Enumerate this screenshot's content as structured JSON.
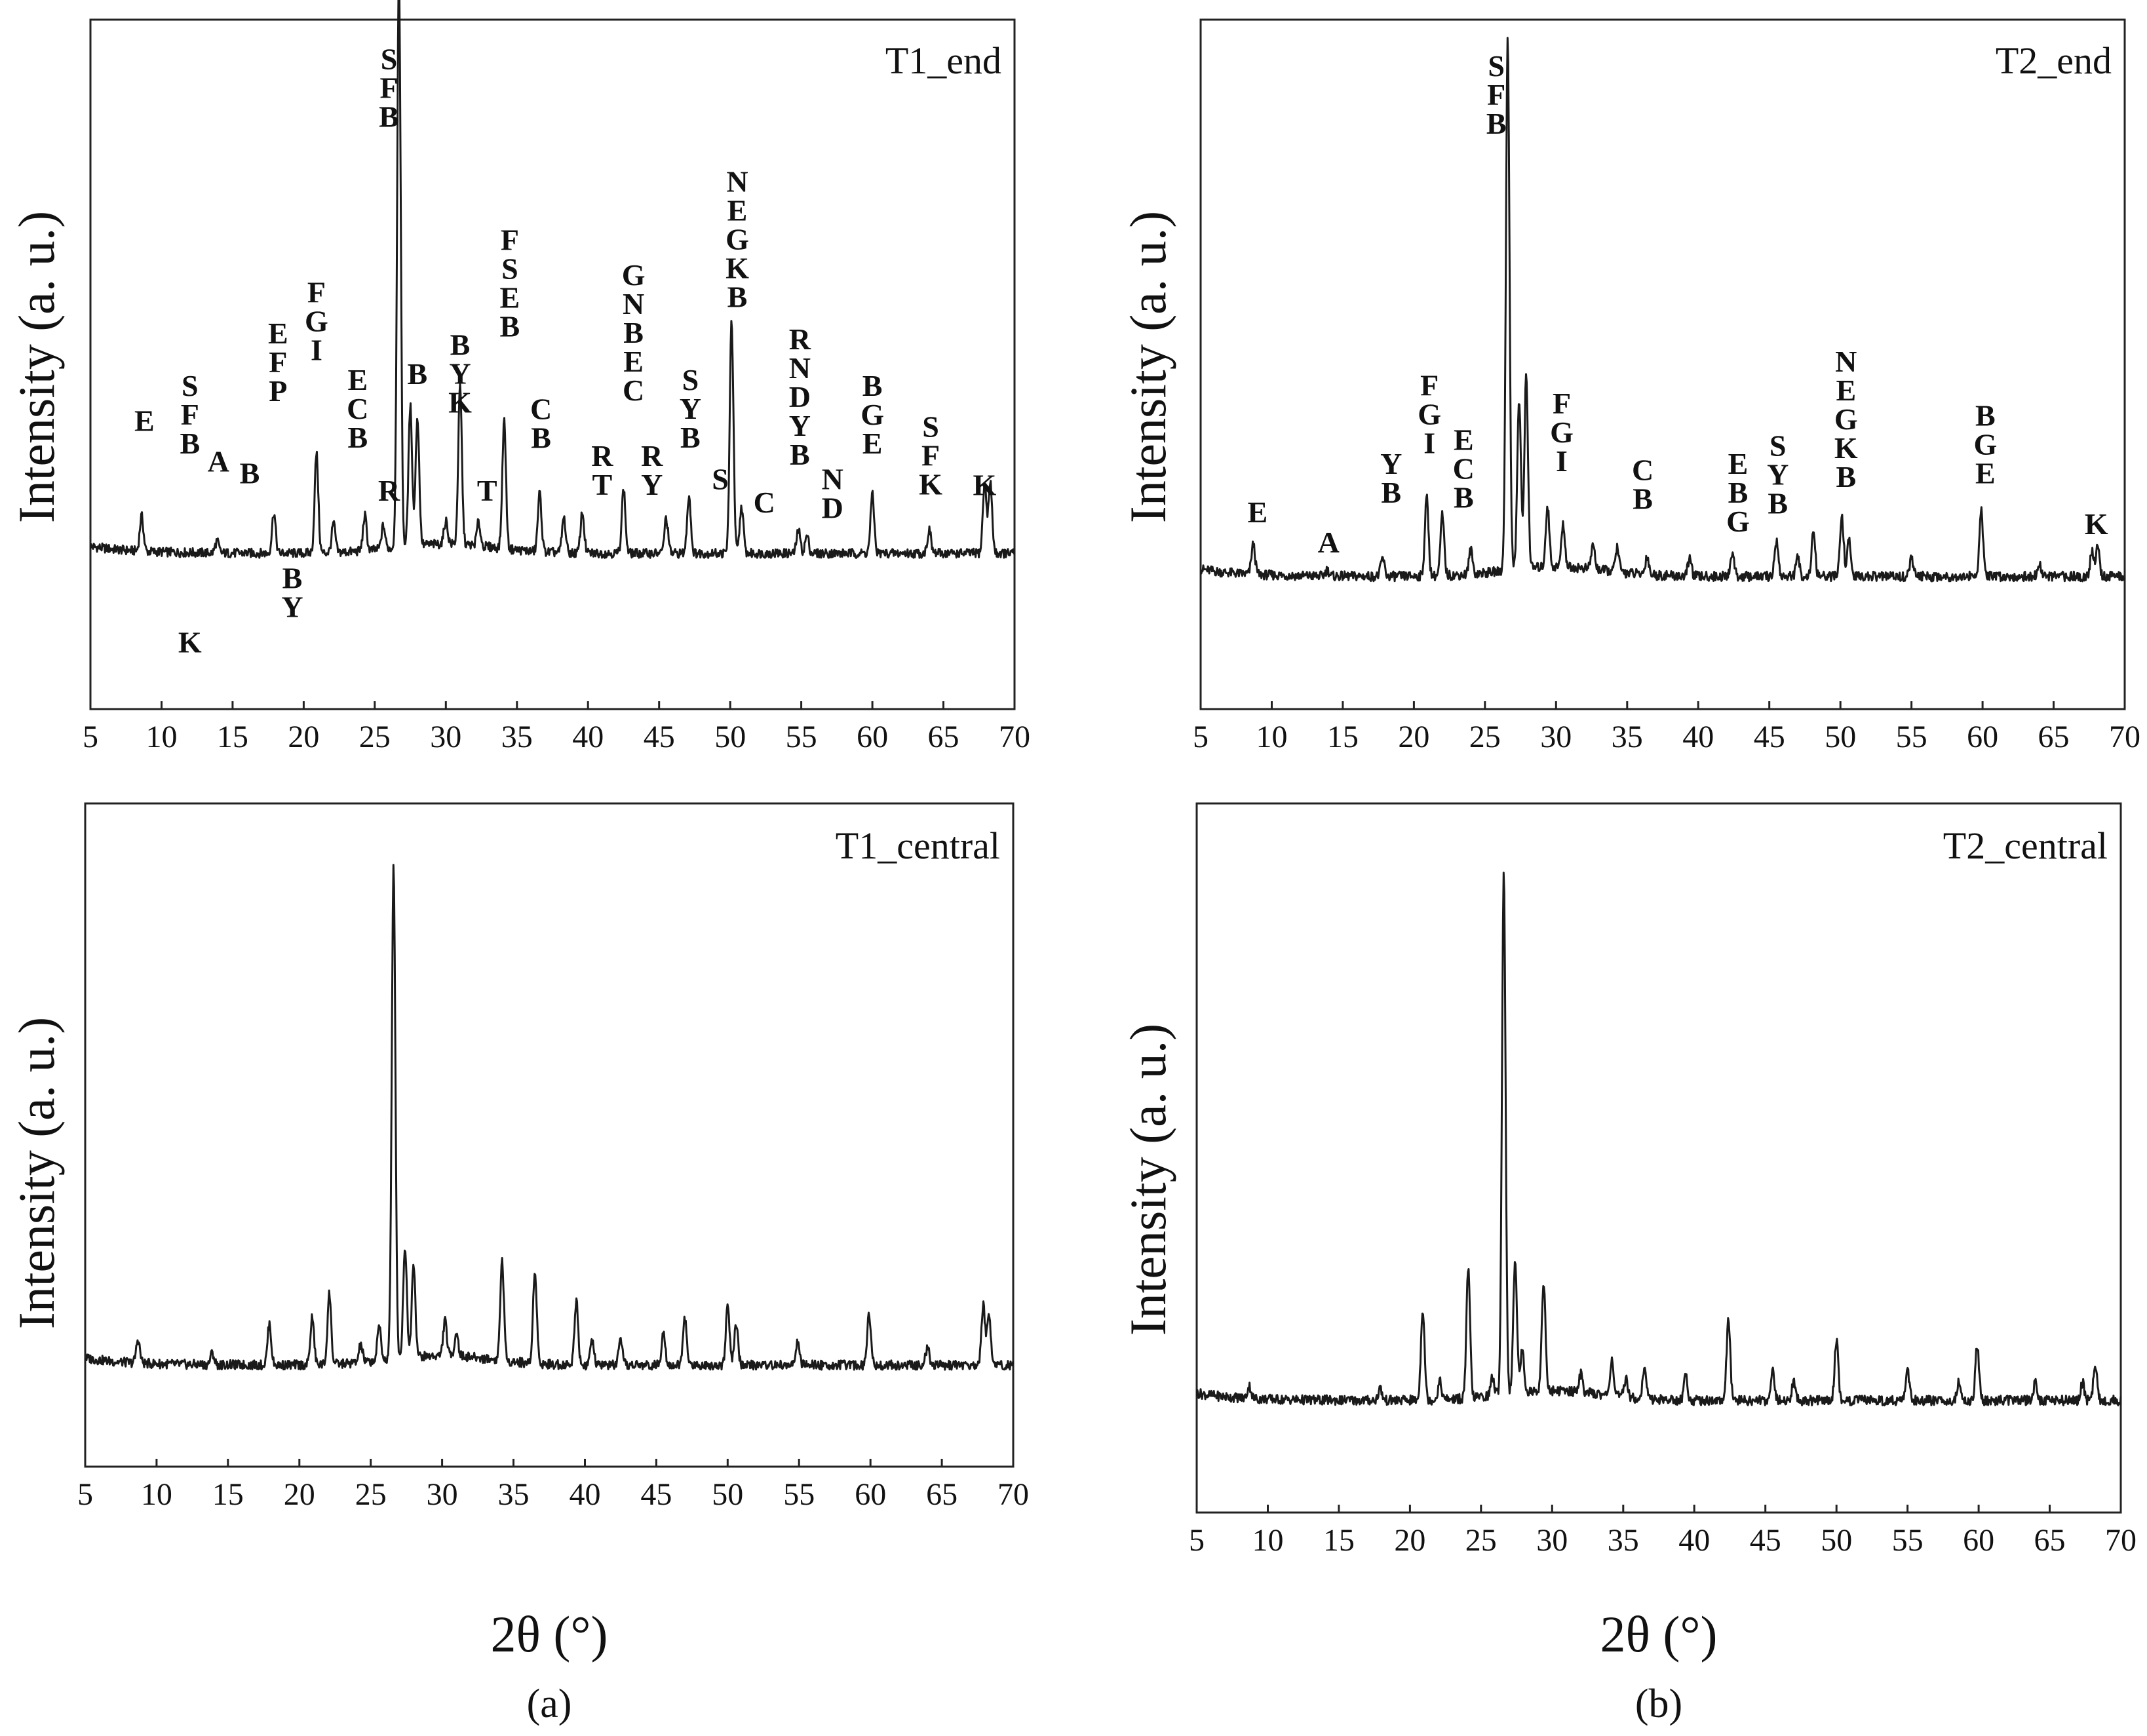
{
  "figure": {
    "x_axis_title": "2θ (°)",
    "y_axis_title": "Intensity (a. u.)",
    "subfigure_labels": [
      "(a)",
      "(b)"
    ]
  },
  "chart_data": [
    {
      "id": "T1_end",
      "type": "line",
      "title": "T1_end",
      "xlabel": "",
      "ylabel": "Intensity (a. u.)",
      "xlim": [
        5,
        70
      ],
      "xticks": [
        5,
        10,
        15,
        20,
        25,
        30,
        35,
        40,
        45,
        50,
        55,
        60,
        65,
        70
      ],
      "ylim": [
        0,
        100
      ],
      "baseline": 13,
      "peaks": [
        {
          "x": 8.6,
          "h": 6
        },
        {
          "x": 13.9,
          "h": 2
        },
        {
          "x": 17.9,
          "h": 7
        },
        {
          "x": 20.9,
          "h": 17
        },
        {
          "x": 22.1,
          "h": 5
        },
        {
          "x": 24.3,
          "h": 6
        },
        {
          "x": 25.6,
          "h": 4
        },
        {
          "x": 26.7,
          "h": 98
        },
        {
          "x": 27.5,
          "h": 24
        },
        {
          "x": 28.0,
          "h": 22
        },
        {
          "x": 30.0,
          "h": 4
        },
        {
          "x": 31.0,
          "h": 27
        },
        {
          "x": 32.3,
          "h": 4
        },
        {
          "x": 34.1,
          "h": 22
        },
        {
          "x": 36.6,
          "h": 10
        },
        {
          "x": 38.3,
          "h": 6
        },
        {
          "x": 39.6,
          "h": 7
        },
        {
          "x": 42.5,
          "h": 11
        },
        {
          "x": 45.5,
          "h": 6
        },
        {
          "x": 47.1,
          "h": 10
        },
        {
          "x": 50.1,
          "h": 40
        },
        {
          "x": 50.8,
          "h": 8
        },
        {
          "x": 54.8,
          "h": 4
        },
        {
          "x": 55.4,
          "h": 3
        },
        {
          "x": 60.0,
          "h": 10
        },
        {
          "x": 64.0,
          "h": 4
        },
        {
          "x": 67.9,
          "h": 12
        },
        {
          "x": 68.3,
          "h": 12
        }
      ],
      "annotations": [
        {
          "x": 8.8,
          "y": 34,
          "labels": [
            "E"
          ]
        },
        {
          "x": 12.0,
          "y": 40,
          "labels": [
            "S",
            "F",
            "B"
          ]
        },
        {
          "x": 12.0,
          "y": -4,
          "labels": [
            "K"
          ]
        },
        {
          "x": 14.0,
          "y": 27,
          "labels": [
            "A"
          ]
        },
        {
          "x": 16.2,
          "y": 25,
          "labels": [
            "B"
          ]
        },
        {
          "x": 18.2,
          "y": 49,
          "labels": [
            "E",
            "F",
            "P"
          ]
        },
        {
          "x": 20.9,
          "y": 56,
          "labels": [
            "F",
            "G",
            "I"
          ]
        },
        {
          "x": 19.2,
          "y": 7,
          "labels": [
            "B",
            "Y"
          ]
        },
        {
          "x": 23.8,
          "y": 41,
          "labels": [
            "E",
            "C",
            "B"
          ]
        },
        {
          "x": 26.0,
          "y": 22,
          "labels": [
            "R"
          ]
        },
        {
          "x": 26.0,
          "y": 96,
          "labels": [
            "S",
            "F",
            "B"
          ]
        },
        {
          "x": 28.0,
          "y": 42,
          "labels": [
            "B"
          ]
        },
        {
          "x": 31.0,
          "y": 47,
          "labels": [
            "B",
            "Y",
            "K"
          ]
        },
        {
          "x": 32.9,
          "y": 22,
          "labels": [
            "T"
          ]
        },
        {
          "x": 34.5,
          "y": 65,
          "labels": [
            "F",
            "S",
            "E",
            "B"
          ]
        },
        {
          "x": 36.7,
          "y": 36,
          "labels": [
            "C",
            "B"
          ]
        },
        {
          "x": 41.0,
          "y": 28,
          "labels": [
            "R",
            "T"
          ]
        },
        {
          "x": 43.2,
          "y": 59,
          "labels": [
            "G",
            "N",
            "B",
            "E",
            "C"
          ]
        },
        {
          "x": 44.5,
          "y": 28,
          "labels": [
            "R",
            "Y"
          ]
        },
        {
          "x": 47.2,
          "y": 41,
          "labels": [
            "S",
            "Y",
            "B"
          ]
        },
        {
          "x": 49.3,
          "y": 24,
          "labels": [
            "S"
          ]
        },
        {
          "x": 50.5,
          "y": 75,
          "labels": [
            "N",
            "E",
            "G",
            "K",
            "B"
          ]
        },
        {
          "x": 52.4,
          "y": 20,
          "labels": [
            "C"
          ]
        },
        {
          "x": 54.9,
          "y": 48,
          "labels": [
            "R",
            "N",
            "D",
            "Y",
            "B"
          ]
        },
        {
          "x": 57.2,
          "y": 24,
          "labels": [
            "N",
            "D"
          ]
        },
        {
          "x": 60.0,
          "y": 40,
          "labels": [
            "B",
            "G",
            "E"
          ]
        },
        {
          "x": 64.1,
          "y": 33,
          "labels": [
            "S",
            "F",
            "K"
          ]
        },
        {
          "x": 67.9,
          "y": 23,
          "labels": [
            "K"
          ]
        }
      ]
    },
    {
      "id": "T2_end",
      "type": "line",
      "title": "T2_end",
      "xlabel": "",
      "ylabel": "Intensity (a. u.)",
      "xlim": [
        5,
        70
      ],
      "xticks": [
        5,
        10,
        15,
        20,
        25,
        30,
        35,
        40,
        45,
        50,
        55,
        60,
        65,
        70
      ],
      "ylim": [
        0,
        100
      ],
      "baseline": 12,
      "peaks": [
        {
          "x": 8.7,
          "h": 5
        },
        {
          "x": 13.9,
          "h": 1
        },
        {
          "x": 17.8,
          "h": 3
        },
        {
          "x": 20.9,
          "h": 13
        },
        {
          "x": 22.0,
          "h": 10
        },
        {
          "x": 24.0,
          "h": 4
        },
        {
          "x": 26.6,
          "h": 88
        },
        {
          "x": 27.4,
          "h": 28
        },
        {
          "x": 27.9,
          "h": 32
        },
        {
          "x": 29.4,
          "h": 10
        },
        {
          "x": 30.5,
          "h": 7
        },
        {
          "x": 32.6,
          "h": 4
        },
        {
          "x": 34.3,
          "h": 4
        },
        {
          "x": 36.4,
          "h": 3
        },
        {
          "x": 39.4,
          "h": 3
        },
        {
          "x": 42.4,
          "h": 4
        },
        {
          "x": 45.5,
          "h": 6
        },
        {
          "x": 47.0,
          "h": 3
        },
        {
          "x": 48.1,
          "h": 7
        },
        {
          "x": 50.1,
          "h": 10
        },
        {
          "x": 50.6,
          "h": 6
        },
        {
          "x": 55.0,
          "h": 3
        },
        {
          "x": 59.9,
          "h": 11
        },
        {
          "x": 64.0,
          "h": 2
        },
        {
          "x": 67.7,
          "h": 4
        },
        {
          "x": 68.1,
          "h": 5
        }
      ],
      "annotations": [
        {
          "x": 9.0,
          "y": 21,
          "labels": [
            "E"
          ]
        },
        {
          "x": 14.0,
          "y": 16,
          "labels": [
            "A"
          ]
        },
        {
          "x": 18.4,
          "y": 29,
          "labels": [
            "Y",
            "B"
          ]
        },
        {
          "x": 21.1,
          "y": 42,
          "labels": [
            "F",
            "G",
            "I"
          ]
        },
        {
          "x": 23.5,
          "y": 33,
          "labels": [
            "E",
            "C",
            "B"
          ]
        },
        {
          "x": 25.8,
          "y": 95,
          "labels": [
            "S",
            "F",
            "B"
          ]
        },
        {
          "x": 30.4,
          "y": 39,
          "labels": [
            "F",
            "G",
            "I"
          ]
        },
        {
          "x": 36.1,
          "y": 28,
          "labels": [
            "C",
            "B"
          ]
        },
        {
          "x": 42.8,
          "y": 29,
          "labels": [
            "E",
            "B",
            "G"
          ]
        },
        {
          "x": 45.6,
          "y": 32,
          "labels": [
            "S",
            "Y",
            "B"
          ]
        },
        {
          "x": 50.4,
          "y": 46,
          "labels": [
            "N",
            "E",
            "G",
            "K",
            "B"
          ]
        },
        {
          "x": 60.2,
          "y": 37,
          "labels": [
            "B",
            "G",
            "E"
          ]
        },
        {
          "x": 68.0,
          "y": 19,
          "labels": [
            "K"
          ]
        }
      ]
    },
    {
      "id": "T1_central",
      "type": "line",
      "title": "T1_central",
      "xlabel": "2θ (°)",
      "ylabel": "Intensity (a. u.)",
      "xlim": [
        5,
        70
      ],
      "xticks": [
        5,
        10,
        15,
        20,
        25,
        30,
        35,
        40,
        45,
        50,
        55,
        60,
        65,
        70
      ],
      "ylim": [
        0,
        100
      ],
      "baseline": 13,
      "peaks": [
        {
          "x": 8.7,
          "h": 4
        },
        {
          "x": 13.9,
          "h": 2
        },
        {
          "x": 17.9,
          "h": 7
        },
        {
          "x": 20.9,
          "h": 8
        },
        {
          "x": 22.1,
          "h": 12
        },
        {
          "x": 24.3,
          "h": 3
        },
        {
          "x": 25.6,
          "h": 6
        },
        {
          "x": 26.6,
          "h": 84
        },
        {
          "x": 27.4,
          "h": 19
        },
        {
          "x": 28.0,
          "h": 16
        },
        {
          "x": 30.2,
          "h": 6
        },
        {
          "x": 31.0,
          "h": 4
        },
        {
          "x": 34.2,
          "h": 17
        },
        {
          "x": 36.5,
          "h": 16
        },
        {
          "x": 39.4,
          "h": 11
        },
        {
          "x": 40.5,
          "h": 4
        },
        {
          "x": 42.5,
          "h": 4
        },
        {
          "x": 45.5,
          "h": 6
        },
        {
          "x": 47.0,
          "h": 8
        },
        {
          "x": 50.0,
          "h": 10
        },
        {
          "x": 50.6,
          "h": 7
        },
        {
          "x": 54.9,
          "h": 4
        },
        {
          "x": 59.9,
          "h": 9
        },
        {
          "x": 64.0,
          "h": 3
        },
        {
          "x": 67.9,
          "h": 10
        },
        {
          "x": 68.3,
          "h": 9
        }
      ],
      "annotations": []
    },
    {
      "id": "T2_central",
      "type": "line",
      "title": "T2_central",
      "xlabel": "2θ (°)",
      "ylabel": "Intensity (a. u.)",
      "xlim": [
        5,
        70
      ],
      "xticks": [
        5,
        10,
        15,
        20,
        25,
        30,
        35,
        40,
        45,
        50,
        55,
        60,
        65,
        70
      ],
      "ylim": [
        0,
        100
      ],
      "baseline": 10,
      "peaks": [
        {
          "x": 8.7,
          "h": 2
        },
        {
          "x": 17.9,
          "h": 2
        },
        {
          "x": 20.9,
          "h": 15
        },
        {
          "x": 22.1,
          "h": 3
        },
        {
          "x": 24.1,
          "h": 21
        },
        {
          "x": 25.8,
          "h": 3
        },
        {
          "x": 26.6,
          "h": 86
        },
        {
          "x": 27.4,
          "h": 22
        },
        {
          "x": 27.9,
          "h": 7
        },
        {
          "x": 29.4,
          "h": 18
        },
        {
          "x": 32.0,
          "h": 3
        },
        {
          "x": 34.2,
          "h": 6
        },
        {
          "x": 35.2,
          "h": 3
        },
        {
          "x": 36.5,
          "h": 5
        },
        {
          "x": 39.4,
          "h": 4
        },
        {
          "x": 42.4,
          "h": 13
        },
        {
          "x": 45.5,
          "h": 5
        },
        {
          "x": 47.0,
          "h": 3
        },
        {
          "x": 50.0,
          "h": 10
        },
        {
          "x": 55.0,
          "h": 5
        },
        {
          "x": 58.6,
          "h": 3
        },
        {
          "x": 59.9,
          "h": 9
        },
        {
          "x": 64.0,
          "h": 3
        },
        {
          "x": 67.3,
          "h": 3
        },
        {
          "x": 68.2,
          "h": 6
        }
      ],
      "annotations": []
    }
  ]
}
